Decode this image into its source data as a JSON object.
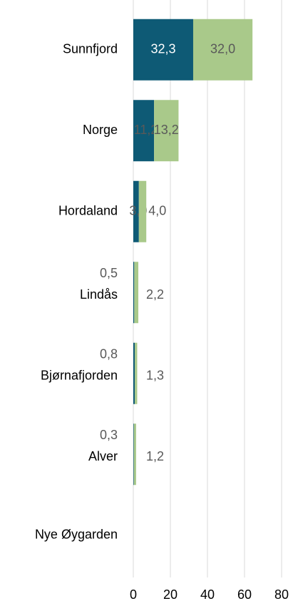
{
  "chart_data": {
    "type": "stacked-bar-horizontal",
    "categories": [
      "Sunnfjord",
      "Norge",
      "Hordaland",
      "Lindås",
      "Bjørnafjorden",
      "Alver",
      "Nye Øygarden"
    ],
    "series": [
      {
        "color": "#0e5a75",
        "values": [
          32.3,
          11.2,
          3.0,
          0.5,
          0.8,
          0.3,
          null
        ],
        "value_labels": [
          "32,3",
          "11,2",
          "3,0",
          "0,5",
          "0,8",
          "0,3",
          null
        ]
      },
      {
        "color": "#a9c98a",
        "values": [
          32.0,
          13.2,
          4.0,
          2.2,
          1.3,
          1.2,
          null
        ],
        "value_labels": [
          "32,0",
          "13,2",
          "4,0",
          "2,2",
          "1,3",
          "1,2",
          null
        ]
      }
    ],
    "xlim": [
      0,
      80
    ],
    "xticks": [
      0,
      20,
      40,
      60,
      80
    ],
    "grid": true
  }
}
